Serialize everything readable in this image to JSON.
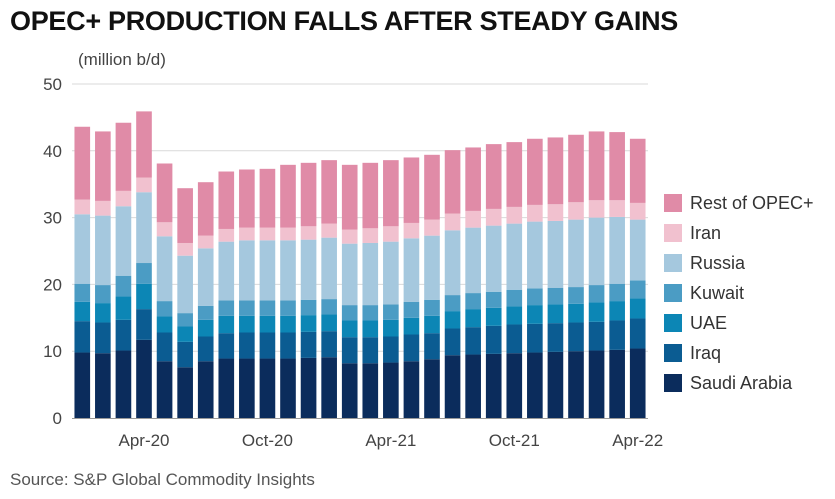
{
  "title": "OPEC+ PRODUCTION FALLS AFTER STEADY GAINS",
  "unit_label": "(million b/d)",
  "source": "Source: S&P Global Commodity Insights",
  "colors": {
    "Saudi Arabia": "#0b2c5c",
    "Iraq": "#0b5c92",
    "UAE": "#0c86b5",
    "Kuwait": "#4b9cc4",
    "Russia": "#a5c8de",
    "Iran": "#f1c1cf",
    "Rest of OPEC+": "#e08ba7",
    "grid": "#d9d9d9",
    "axis": "#9a9a9a"
  },
  "chart_data": {
    "type": "bar",
    "stacked": true,
    "categories": [
      "Jan-20",
      "Feb-20",
      "Mar-20",
      "Apr-20",
      "May-20",
      "Jun-20",
      "Jul-20",
      "Aug-20",
      "Sep-20",
      "Oct-20",
      "Nov-20",
      "Dec-20",
      "Jan-21",
      "Feb-21",
      "Mar-21",
      "Apr-21",
      "May-21",
      "Jun-21",
      "Jul-21",
      "Aug-21",
      "Sep-21",
      "Oct-21",
      "Nov-21",
      "Dec-21",
      "Jan-22",
      "Feb-22",
      "Mar-22",
      "Apr-22"
    ],
    "x_tick_labels": [
      {
        "category": "Apr-20",
        "label": "Apr-20"
      },
      {
        "category": "Oct-20",
        "label": "Oct-20"
      },
      {
        "category": "Apr-21",
        "label": "Apr-21"
      },
      {
        "category": "Oct-21",
        "label": "Oct-21"
      },
      {
        "category": "Apr-22",
        "label": "Apr-22"
      }
    ],
    "ylabel": "(million b/d)",
    "ylim": [
      0,
      50
    ],
    "yticks": [
      0,
      10,
      20,
      30,
      40,
      50
    ],
    "grid": true,
    "legend_position": "right",
    "series": [
      {
        "name": "Saudi Arabia",
        "values": [
          9.8,
          9.7,
          10.1,
          11.7,
          8.5,
          7.6,
          8.5,
          8.9,
          8.9,
          8.9,
          8.9,
          9.0,
          9.1,
          8.2,
          8.2,
          8.3,
          8.5,
          8.8,
          9.4,
          9.5,
          9.6,
          9.7,
          9.8,
          9.9,
          10.0,
          10.1,
          10.2,
          10.4
        ]
      },
      {
        "name": "Iraq",
        "values": [
          4.7,
          4.6,
          4.6,
          4.6,
          4.3,
          3.8,
          3.7,
          3.8,
          3.9,
          3.9,
          3.9,
          3.9,
          3.9,
          3.9,
          3.9,
          3.9,
          4.0,
          3.9,
          4.0,
          4.1,
          4.2,
          4.3,
          4.3,
          4.3,
          4.3,
          4.3,
          4.4,
          4.5
        ]
      },
      {
        "name": "UAE",
        "values": [
          2.9,
          2.9,
          3.5,
          3.8,
          2.4,
          2.3,
          2.5,
          2.6,
          2.5,
          2.5,
          2.5,
          2.5,
          2.5,
          2.5,
          2.5,
          2.5,
          2.5,
          2.6,
          2.6,
          2.7,
          2.7,
          2.7,
          2.8,
          2.8,
          2.8,
          2.9,
          2.9,
          3.0
        ]
      },
      {
        "name": "Kuwait",
        "values": [
          2.7,
          2.7,
          3.1,
          3.1,
          2.3,
          2.0,
          2.1,
          2.3,
          2.3,
          2.3,
          2.3,
          2.3,
          2.3,
          2.3,
          2.3,
          2.3,
          2.4,
          2.4,
          2.4,
          2.4,
          2.4,
          2.5,
          2.5,
          2.5,
          2.5,
          2.6,
          2.6,
          2.7
        ]
      },
      {
        "name": "Russia",
        "values": [
          10.4,
          10.4,
          10.4,
          10.6,
          9.7,
          8.6,
          8.6,
          8.8,
          9.0,
          9.0,
          9.0,
          9.0,
          9.2,
          9.2,
          9.3,
          9.4,
          9.5,
          9.6,
          9.7,
          9.8,
          9.9,
          9.9,
          10.0,
          10.0,
          10.1,
          10.1,
          10.0,
          9.1
        ]
      },
      {
        "name": "Iran",
        "values": [
          2.2,
          2.2,
          2.3,
          2.2,
          2.1,
          1.9,
          1.9,
          1.9,
          1.9,
          1.9,
          1.9,
          2.0,
          2.1,
          2.1,
          2.2,
          2.3,
          2.3,
          2.4,
          2.5,
          2.5,
          2.5,
          2.5,
          2.5,
          2.5,
          2.6,
          2.6,
          2.5,
          2.5
        ]
      },
      {
        "name": "Rest of OPEC+",
        "values": [
          10.9,
          10.4,
          10.2,
          9.9,
          8.8,
          8.2,
          8.0,
          8.6,
          8.7,
          8.8,
          9.4,
          9.5,
          9.5,
          9.7,
          9.8,
          9.9,
          9.8,
          9.7,
          9.5,
          9.5,
          9.7,
          9.7,
          9.9,
          10.0,
          10.1,
          10.3,
          10.2,
          9.6
        ]
      }
    ]
  }
}
